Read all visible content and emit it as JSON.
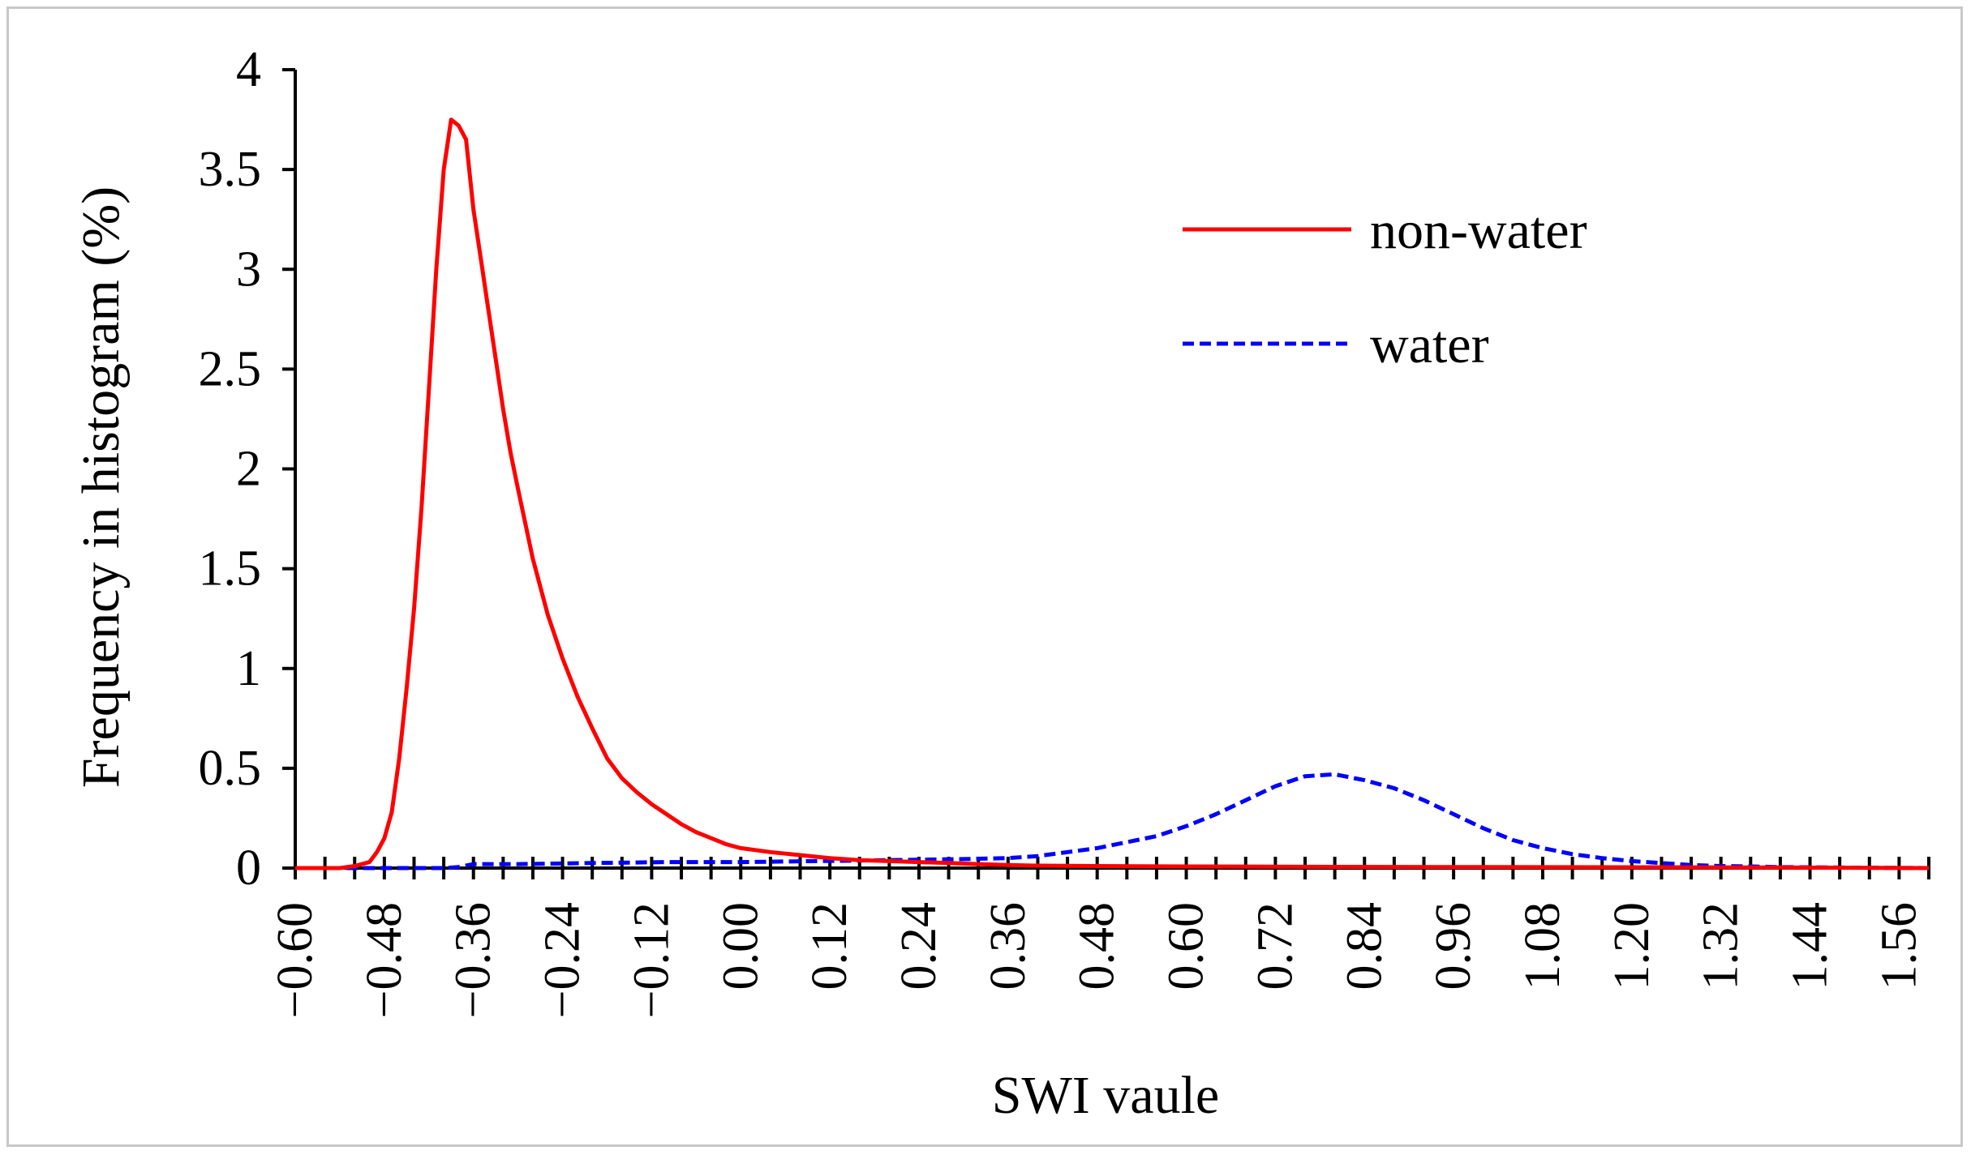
{
  "chart_data": {
    "type": "line",
    "title": "",
    "xlabel": "SWI vaule",
    "ylabel": "Frequency in histogram (%)",
    "xlim": [
      -0.6,
      1.6
    ],
    "ylim": [
      0,
      4
    ],
    "grid": false,
    "legend_position": "top-right",
    "y_ticks": [
      "0",
      "0.5",
      "1",
      "1.5",
      "2",
      "2.5",
      "3",
      "3.5",
      "4"
    ],
    "x_ticks": [
      "−0.60",
      "−0.48",
      "−0.36",
      "−0.24",
      "−0.12",
      "0.00",
      "0.12",
      "0.24",
      "0.36",
      "0.48",
      "0.60",
      "0.72",
      "0.84",
      "0.96",
      "1.08",
      "1.20",
      "1.32",
      "1.44",
      "1.56"
    ],
    "series": [
      {
        "name": "non-water",
        "color": "#ff0000",
        "style": "solid",
        "x": [
          -0.6,
          -0.54,
          -0.52,
          -0.5,
          -0.49,
          -0.48,
          -0.47,
          -0.46,
          -0.45,
          -0.44,
          -0.43,
          -0.42,
          -0.41,
          -0.4,
          -0.39,
          -0.38,
          -0.37,
          -0.36,
          -0.35,
          -0.34,
          -0.33,
          -0.32,
          -0.31,
          -0.3,
          -0.28,
          -0.26,
          -0.24,
          -0.22,
          -0.2,
          -0.18,
          -0.16,
          -0.14,
          -0.12,
          -0.1,
          -0.08,
          -0.06,
          -0.04,
          -0.02,
          0.0,
          0.04,
          0.08,
          0.12,
          0.16,
          0.2,
          0.24,
          0.28,
          0.32,
          0.36,
          0.4,
          0.48,
          0.6,
          0.8,
          1.0,
          1.2,
          1.4,
          1.6
        ],
        "values": [
          0.0,
          0.0,
          0.01,
          0.03,
          0.08,
          0.15,
          0.28,
          0.55,
          0.9,
          1.3,
          1.8,
          2.4,
          3.0,
          3.5,
          3.75,
          3.72,
          3.65,
          3.3,
          3.05,
          2.8,
          2.55,
          2.3,
          2.08,
          1.9,
          1.55,
          1.27,
          1.05,
          0.86,
          0.7,
          0.55,
          0.45,
          0.38,
          0.32,
          0.27,
          0.22,
          0.18,
          0.15,
          0.12,
          0.1,
          0.08,
          0.065,
          0.05,
          0.04,
          0.035,
          0.03,
          0.025,
          0.02,
          0.015,
          0.012,
          0.01,
          0.008,
          0.006,
          0.005,
          0.004,
          0.003,
          0.0
        ]
      },
      {
        "name": "water",
        "color": "#0000ff",
        "style": "dashed",
        "x": [
          -0.6,
          -0.4,
          -0.38,
          -0.36,
          -0.3,
          -0.2,
          -0.1,
          0.0,
          0.1,
          0.2,
          0.3,
          0.36,
          0.4,
          0.44,
          0.48,
          0.52,
          0.56,
          0.6,
          0.64,
          0.68,
          0.72,
          0.76,
          0.8,
          0.84,
          0.88,
          0.92,
          0.96,
          1.0,
          1.04,
          1.08,
          1.12,
          1.16,
          1.2,
          1.24,
          1.28,
          1.32,
          1.36,
          1.4,
          1.5,
          1.6
        ],
        "values": [
          0.0,
          0.0,
          0.005,
          0.02,
          0.02,
          0.025,
          0.03,
          0.03,
          0.035,
          0.04,
          0.045,
          0.05,
          0.06,
          0.08,
          0.1,
          0.13,
          0.16,
          0.21,
          0.27,
          0.34,
          0.41,
          0.46,
          0.47,
          0.44,
          0.4,
          0.34,
          0.27,
          0.2,
          0.14,
          0.1,
          0.07,
          0.05,
          0.035,
          0.025,
          0.015,
          0.01,
          0.008,
          0.005,
          0.002,
          0.0
        ]
      }
    ]
  }
}
